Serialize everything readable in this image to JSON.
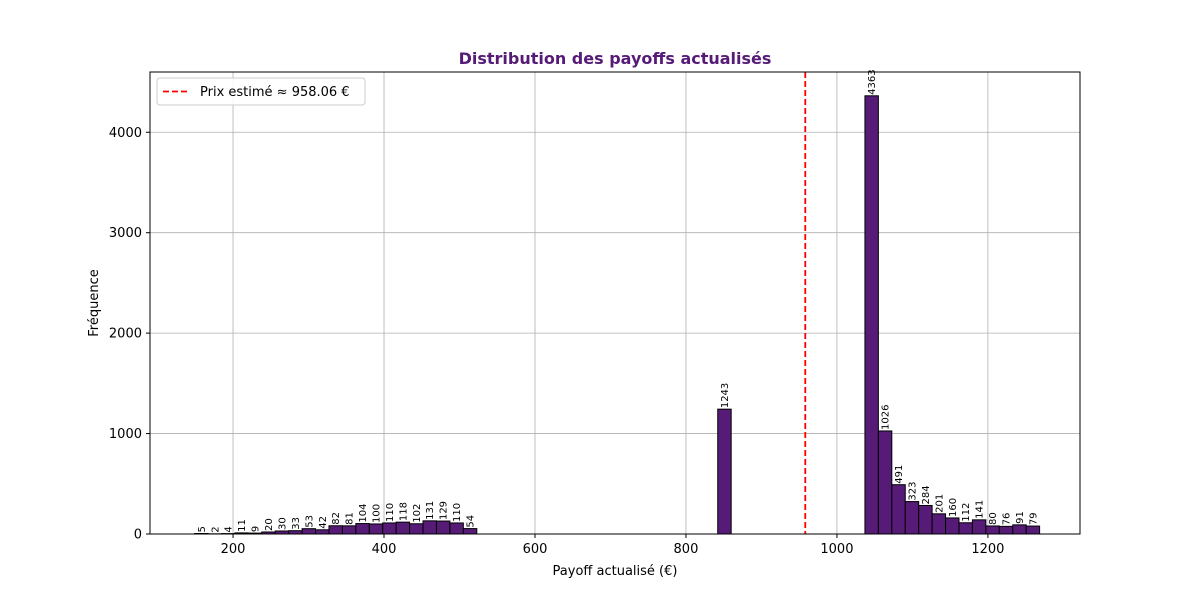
{
  "chart_data": {
    "type": "bar",
    "title": "Distribution des payoffs actualisés",
    "xlabel": "Payoff actualisé (€)",
    "ylabel": "Fréquence",
    "xlim": [
      90,
      1322
    ],
    "ylim": [
      0,
      4600
    ],
    "xticks": [
      200,
      400,
      600,
      800,
      1000,
      1200
    ],
    "yticks": [
      0,
      1000,
      2000,
      3000,
      4000
    ],
    "grid": true,
    "legend_position": "top-left",
    "bin_width": 17.8,
    "bars": [
      {
        "x": 158.0,
        "count": 5
      },
      {
        "x": 175.8,
        "count": 2
      },
      {
        "x": 193.6,
        "count": 4
      },
      {
        "x": 211.4,
        "count": 11
      },
      {
        "x": 229.2,
        "count": 9
      },
      {
        "x": 247.0,
        "count": 20
      },
      {
        "x": 264.8,
        "count": 30
      },
      {
        "x": 282.6,
        "count": 33
      },
      {
        "x": 300.4,
        "count": 53
      },
      {
        "x": 318.2,
        "count": 42
      },
      {
        "x": 336.0,
        "count": 82
      },
      {
        "x": 353.8,
        "count": 81
      },
      {
        "x": 371.6,
        "count": 104
      },
      {
        "x": 389.4,
        "count": 100
      },
      {
        "x": 407.2,
        "count": 110
      },
      {
        "x": 425.0,
        "count": 118
      },
      {
        "x": 442.8,
        "count": 102
      },
      {
        "x": 460.6,
        "count": 131
      },
      {
        "x": 478.4,
        "count": 129
      },
      {
        "x": 496.2,
        "count": 110
      },
      {
        "x": 514.0,
        "count": 54
      },
      {
        "x": 851.0,
        "count": 1243
      },
      {
        "x": 1046.0,
        "count": 4363
      },
      {
        "x": 1063.8,
        "count": 1026
      },
      {
        "x": 1081.6,
        "count": 491
      },
      {
        "x": 1099.4,
        "count": 323
      },
      {
        "x": 1117.2,
        "count": 284
      },
      {
        "x": 1135.0,
        "count": 201
      },
      {
        "x": 1152.8,
        "count": 160
      },
      {
        "x": 1170.6,
        "count": 112
      },
      {
        "x": 1188.4,
        "count": 141
      },
      {
        "x": 1206.2,
        "count": 80
      },
      {
        "x": 1224.0,
        "count": 76
      },
      {
        "x": 1241.8,
        "count": 91
      },
      {
        "x": 1259.6,
        "count": 79
      }
    ],
    "reference_line": {
      "x": 958.06,
      "label": "Prix estimé ≈ 958.06 €"
    },
    "colors": {
      "bar_fill": "#561b77",
      "bar_edge": "#000000",
      "reference_line": "#ff0000",
      "title": "#561b77",
      "grid": "#b0b0b0"
    }
  }
}
